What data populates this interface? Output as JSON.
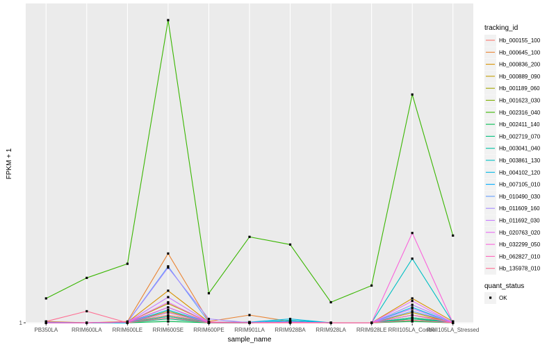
{
  "chart_data": {
    "type": "line",
    "xlabel": "sample_name",
    "ylabel": "FPKM + 1",
    "categories": [
      "PB350LA",
      "RRIM600LA",
      "RRIM600LE",
      "RRIM600SE",
      "RRIM600PE",
      "RRIM901LA",
      "RRIM928BA",
      "RRIM928LA",
      "RRIM928LE",
      "RRII105LA_Control",
      "RRII105LA_Stressed"
    ],
    "y_ticks": [
      {
        "value": 1,
        "label": "1"
      }
    ],
    "ylim": [
      0.95,
      25.9
    ],
    "legend": {
      "title": "tracking_id",
      "position": "right"
    },
    "status_legend": {
      "title": "quant_status",
      "items": [
        {
          "label": "OK"
        }
      ]
    },
    "series": [
      {
        "name": "Hb_000155_100",
        "color": "#F8766D",
        "values": [
          1.05,
          1.0,
          1.05,
          1.6,
          1.05,
          1.05,
          1.05,
          1.0,
          1.0,
          1.3,
          1.1
        ]
      },
      {
        "name": "Hb_000645_100",
        "color": "#EA8331",
        "values": [
          1.1,
          1.0,
          1.1,
          6.4,
          1.1,
          1.6,
          1.1,
          1.0,
          1.0,
          1.6,
          1.1
        ]
      },
      {
        "name": "Hb_000836_200",
        "color": "#D89000",
        "values": [
          1.05,
          1.0,
          1.05,
          3.5,
          1.05,
          1.05,
          1.05,
          1.0,
          1.0,
          2.9,
          1.1
        ]
      },
      {
        "name": "Hb_000889_090",
        "color": "#C09B00",
        "values": [
          1.0,
          1.0,
          1.05,
          2.5,
          1.05,
          1.05,
          1.05,
          1.0,
          1.0,
          1.8,
          1.05
        ]
      },
      {
        "name": "Hb_001189_060",
        "color": "#A3A500",
        "values": [
          1.0,
          1.0,
          1.0,
          1.9,
          1.0,
          1.0,
          1.05,
          1.0,
          1.0,
          1.4,
          1.05
        ]
      },
      {
        "name": "Hb_001623_030",
        "color": "#7CAE00",
        "values": [
          1.0,
          1.0,
          1.0,
          1.5,
          1.0,
          1.0,
          1.05,
          1.0,
          1.0,
          1.2,
          1.0
        ]
      },
      {
        "name": "Hb_002316_040",
        "color": "#39B600",
        "values": [
          2.9,
          4.5,
          5.6,
          24.6,
          3.3,
          7.7,
          7.1,
          2.6,
          3.9,
          18.8,
          7.8
        ]
      },
      {
        "name": "Hb_002411_140",
        "color": "#00BB4E",
        "values": [
          1.0,
          1.0,
          1.0,
          1.1,
          1.0,
          1.0,
          1.05,
          1.0,
          1.0,
          1.1,
          1.0
        ]
      },
      {
        "name": "Hb_002719_070",
        "color": "#00BF7D",
        "values": [
          1.0,
          1.0,
          1.0,
          1.3,
          1.0,
          1.0,
          1.05,
          1.0,
          1.0,
          1.3,
          1.0
        ]
      },
      {
        "name": "Hb_003041_040",
        "color": "#00C1A3",
        "values": [
          1.0,
          1.0,
          1.0,
          1.5,
          1.0,
          1.0,
          1.1,
          1.0,
          1.0,
          1.4,
          1.0
        ]
      },
      {
        "name": "Hb_003861_130",
        "color": "#00BFC4",
        "values": [
          1.0,
          1.0,
          1.0,
          1.8,
          1.0,
          1.0,
          1.2,
          1.0,
          1.0,
          6.0,
          1.0
        ]
      },
      {
        "name": "Hb_004102_120",
        "color": "#00B8E5",
        "values": [
          1.0,
          1.0,
          1.0,
          2.0,
          1.0,
          1.05,
          1.3,
          1.0,
          1.0,
          2.2,
          1.0
        ]
      },
      {
        "name": "Hb_007105_010",
        "color": "#00ABFD",
        "values": [
          1.0,
          1.0,
          1.0,
          2.2,
          1.0,
          1.0,
          1.1,
          1.0,
          1.0,
          1.6,
          1.0
        ]
      },
      {
        "name": "Hb_010490_030",
        "color": "#619CFF",
        "values": [
          1.05,
          1.0,
          1.05,
          5.4,
          1.05,
          1.05,
          1.05,
          1.0,
          1.0,
          1.9,
          1.05
        ]
      },
      {
        "name": "Hb_011609_160",
        "color": "#A58AFF",
        "values": [
          1.0,
          1.0,
          1.05,
          5.3,
          1.3,
          1.0,
          1.05,
          1.0,
          1.0,
          2.4,
          1.05
        ]
      },
      {
        "name": "Hb_011692_030",
        "color": "#C77CFF",
        "values": [
          1.0,
          1.0,
          1.05,
          3.0,
          1.05,
          1.0,
          1.05,
          1.0,
          1.0,
          2.1,
          1.0
        ]
      },
      {
        "name": "Hb_020763_020",
        "color": "#E76BF3",
        "values": [
          1.0,
          1.0,
          1.05,
          2.6,
          1.05,
          1.0,
          1.05,
          1.0,
          1.0,
          2.7,
          1.0
        ]
      },
      {
        "name": "Hb_032299_050",
        "color": "#FA62DB",
        "values": [
          1.0,
          1.0,
          1.05,
          2.2,
          1.05,
          1.0,
          1.05,
          1.0,
          1.0,
          8.0,
          1.0
        ]
      },
      {
        "name": "Hb_062827_010",
        "color": "#FF62BC",
        "values": [
          1.0,
          1.0,
          1.05,
          1.8,
          1.05,
          1.0,
          1.0,
          1.0,
          1.0,
          1.6,
          1.0
        ]
      },
      {
        "name": "Hb_135978_010",
        "color": "#FF6C91",
        "values": [
          1.1,
          1.9,
          1.0,
          1.4,
          1.0,
          1.0,
          1.0,
          1.0,
          1.0,
          1.2,
          1.0
        ]
      }
    ]
  }
}
